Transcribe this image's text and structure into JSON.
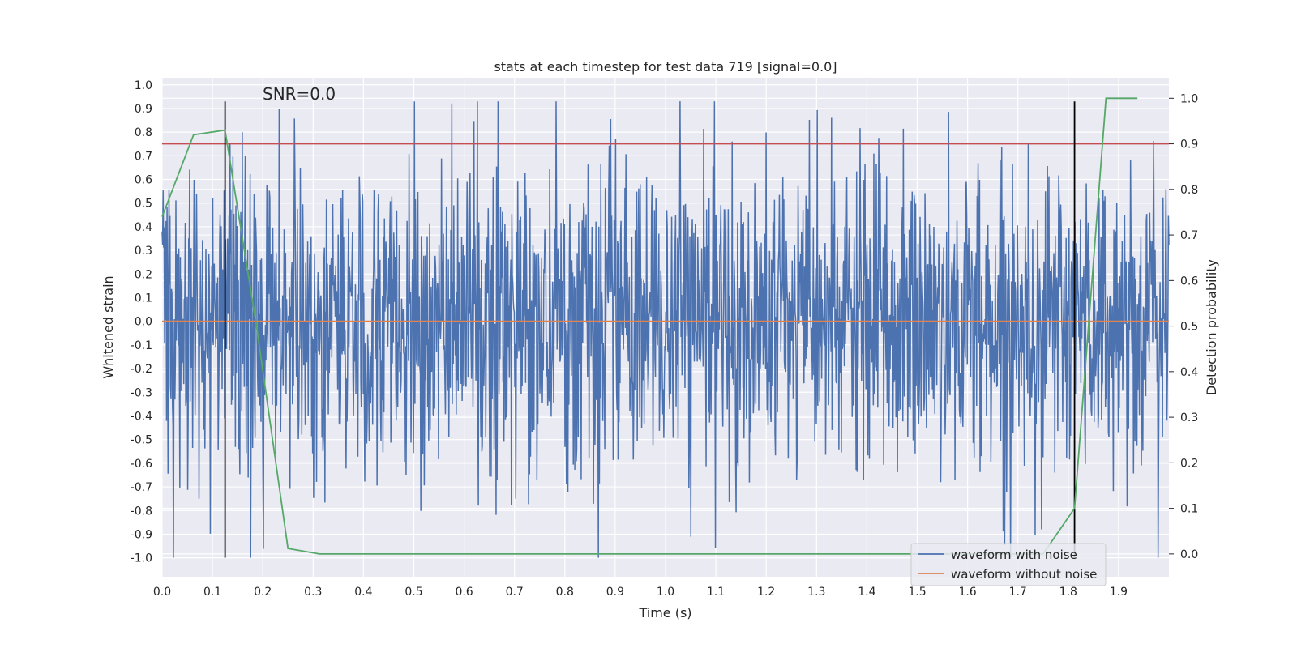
{
  "chart_data": {
    "type": "line",
    "title": "stats at each timestep for test data 719 [signal=0.0]",
    "annotation": "SNR=0.0",
    "xlabel": "Time (s)",
    "ylabel": "Whitened strain",
    "y2label": "Detection probability",
    "xlim": [
      0.0,
      2.0
    ],
    "ylim": [
      -1.08,
      1.03
    ],
    "y2lim": [
      -0.05,
      1.045
    ],
    "xticks": [
      "0.0",
      "0.1",
      "0.2",
      "0.3",
      "0.4",
      "0.5",
      "0.6",
      "0.7",
      "0.8",
      "0.9",
      "1.0",
      "1.1",
      "1.2",
      "1.3",
      "1.4",
      "1.5",
      "1.6",
      "1.7",
      "1.8",
      "1.9"
    ],
    "yticks": [
      "1.0",
      "0.9",
      "0.8",
      "0.7",
      "0.6",
      "0.5",
      "0.4",
      "0.3",
      "0.2",
      "0.1",
      "0.0",
      "-0.1",
      "-0.2",
      "-0.3",
      "-0.4",
      "-0.5",
      "-0.6",
      "-0.7",
      "-0.8",
      "-0.9",
      "-1.0"
    ],
    "y2ticks": [
      "1.0",
      "0.9",
      "0.8",
      "0.7",
      "0.6",
      "0.5",
      "0.4",
      "0.3",
      "0.2",
      "0.1",
      "0.0"
    ],
    "grid": true,
    "legend_position": "lower-right",
    "series": [
      {
        "name": "waveform with noise",
        "color": "#4c72b0",
        "kind": "noise",
        "x_range": [
          0.0,
          2.0
        ],
        "approx_points": 2048,
        "y_range_observed": [
          -1.0,
          0.93
        ]
      },
      {
        "name": "waveform without noise",
        "color": "#dd8452",
        "x": [
          0.0,
          2.0
        ],
        "y": [
          0.0,
          0.0
        ]
      },
      {
        "name": "",
        "color": "#55a868",
        "axis": "right",
        "x": [
          0.0,
          0.0625,
          0.125,
          0.1875,
          0.25,
          0.3125,
          0.375,
          0.4375,
          0.5,
          0.5625,
          0.625,
          0.6875,
          0.75,
          0.8125,
          0.875,
          0.9375,
          1.0,
          1.0625,
          1.125,
          1.1875,
          1.25,
          1.3125,
          1.375,
          1.4375,
          1.5,
          1.5625,
          1.625,
          1.6875,
          1.75,
          1.8125,
          1.875,
          1.9375
        ],
        "y": [
          0.74,
          0.92,
          0.93,
          0.5,
          0.012,
          0.0,
          0.0,
          0.0,
          0.0,
          0.0,
          0.0,
          0.0,
          0.0,
          0.0,
          0.0,
          0.0,
          0.0,
          0.0,
          0.0,
          0.0,
          0.0,
          0.0,
          0.0,
          0.0,
          0.0,
          0.0,
          0.0,
          0.0,
          0.0,
          0.1,
          1.0,
          1.0
        ]
      }
    ],
    "threshold": {
      "axis": "right",
      "value": 0.9,
      "color": "#c44e52"
    },
    "vertical_markers": {
      "x": [
        0.125,
        1.8125
      ],
      "color": "#000000",
      "y_range": [
        -1.0,
        0.93
      ]
    }
  }
}
